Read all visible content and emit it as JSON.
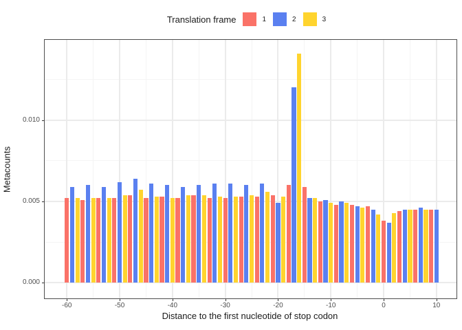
{
  "legend": {
    "title": "Translation frame",
    "items": [
      {
        "label": "1",
        "color": "#FA7268"
      },
      {
        "label": "2",
        "color": "#5A80F0"
      },
      {
        "label": "3",
        "color": "#FFD42E"
      }
    ]
  },
  "colors": {
    "frame1": "#FA7268",
    "frame2": "#5A80F0",
    "frame3": "#FFD42E",
    "grid_major": "#ebebeb",
    "grid_minor": "#f4f4f4",
    "panel_border": "#4d4d4d",
    "tick_text": "#4d4d4d"
  },
  "chart_data": {
    "type": "bar",
    "title": "",
    "xlabel": "Distance to the first nucleotide of stop codon",
    "ylabel": "Metacounts",
    "legend_title": "Translation frame",
    "legend_position": "top",
    "grid": true,
    "xlim": [
      -64.2,
      13.8
    ],
    "ylim": [
      -0.00096,
      0.01493
    ],
    "x_major_ticks": [
      -60,
      -50,
      -40,
      -30,
      -20,
      -10,
      0,
      10
    ],
    "x_minor_ticks": [
      -55,
      -45,
      -35,
      -25,
      -15,
      -5,
      5
    ],
    "y_major_ticks": [
      0.0,
      0.005,
      0.01
    ],
    "y_minor_ticks": [
      0.0025,
      0.0075,
      0.0125
    ],
    "y_tick_labels": [
      "0.000",
      "0.005",
      "0.010"
    ],
    "bars": [
      {
        "x": -60,
        "frame": 1,
        "v": 0.0052
      },
      {
        "x": -59,
        "frame": 2,
        "v": 0.0059
      },
      {
        "x": -58,
        "frame": 3,
        "v": 0.0052
      },
      {
        "x": -57,
        "frame": 1,
        "v": 0.0051
      },
      {
        "x": -56,
        "frame": 2,
        "v": 0.006
      },
      {
        "x": -55,
        "frame": 3,
        "v": 0.0052
      },
      {
        "x": -54,
        "frame": 1,
        "v": 0.0052
      },
      {
        "x": -53,
        "frame": 2,
        "v": 0.0059
      },
      {
        "x": -52,
        "frame": 3,
        "v": 0.0052
      },
      {
        "x": -51,
        "frame": 1,
        "v": 0.0052
      },
      {
        "x": -50,
        "frame": 2,
        "v": 0.0062
      },
      {
        "x": -49,
        "frame": 3,
        "v": 0.0054
      },
      {
        "x": -48,
        "frame": 1,
        "v": 0.0054
      },
      {
        "x": -47,
        "frame": 2,
        "v": 0.0064
      },
      {
        "x": -46,
        "frame": 3,
        "v": 0.0057
      },
      {
        "x": -45,
        "frame": 1,
        "v": 0.0052
      },
      {
        "x": -44,
        "frame": 2,
        "v": 0.0061
      },
      {
        "x": -43,
        "frame": 3,
        "v": 0.0053
      },
      {
        "x": -42,
        "frame": 1,
        "v": 0.0053
      },
      {
        "x": -41,
        "frame": 2,
        "v": 0.006
      },
      {
        "x": -40,
        "frame": 3,
        "v": 0.0052
      },
      {
        "x": -39,
        "frame": 1,
        "v": 0.0052
      },
      {
        "x": -38,
        "frame": 2,
        "v": 0.0059
      },
      {
        "x": -37,
        "frame": 3,
        "v": 0.0054
      },
      {
        "x": -36,
        "frame": 1,
        "v": 0.0054
      },
      {
        "x": -35,
        "frame": 2,
        "v": 0.006
      },
      {
        "x": -34,
        "frame": 3,
        "v": 0.0054
      },
      {
        "x": -33,
        "frame": 1,
        "v": 0.0052
      },
      {
        "x": -32,
        "frame": 2,
        "v": 0.0061
      },
      {
        "x": -31,
        "frame": 3,
        "v": 0.0053
      },
      {
        "x": -30,
        "frame": 1,
        "v": 0.0052
      },
      {
        "x": -29,
        "frame": 2,
        "v": 0.0061
      },
      {
        "x": -28,
        "frame": 3,
        "v": 0.0053
      },
      {
        "x": -27,
        "frame": 1,
        "v": 0.0053
      },
      {
        "x": -26,
        "frame": 2,
        "v": 0.006
      },
      {
        "x": -25,
        "frame": 3,
        "v": 0.0054
      },
      {
        "x": -24,
        "frame": 1,
        "v": 0.0053
      },
      {
        "x": -23,
        "frame": 2,
        "v": 0.0061
      },
      {
        "x": -22,
        "frame": 3,
        "v": 0.0056
      },
      {
        "x": -21,
        "frame": 1,
        "v": 0.0054
      },
      {
        "x": -20,
        "frame": 2,
        "v": 0.0049
      },
      {
        "x": -19,
        "frame": 3,
        "v": 0.0053
      },
      {
        "x": -18,
        "frame": 1,
        "v": 0.006
      },
      {
        "x": -17,
        "frame": 2,
        "v": 0.012
      },
      {
        "x": -16,
        "frame": 3,
        "v": 0.0141
      },
      {
        "x": -15,
        "frame": 1,
        "v": 0.0059
      },
      {
        "x": -14,
        "frame": 2,
        "v": 0.0052
      },
      {
        "x": -13,
        "frame": 3,
        "v": 0.0052
      },
      {
        "x": -12,
        "frame": 1,
        "v": 0.005
      },
      {
        "x": -11,
        "frame": 2,
        "v": 0.0051
      },
      {
        "x": -10,
        "frame": 3,
        "v": 0.0049
      },
      {
        "x": -9,
        "frame": 1,
        "v": 0.0048
      },
      {
        "x": -8,
        "frame": 2,
        "v": 0.005
      },
      {
        "x": -7,
        "frame": 3,
        "v": 0.0049
      },
      {
        "x": -6,
        "frame": 1,
        "v": 0.0048
      },
      {
        "x": -5,
        "frame": 2,
        "v": 0.0047
      },
      {
        "x": -4,
        "frame": 3,
        "v": 0.0046
      },
      {
        "x": -3,
        "frame": 1,
        "v": 0.0047
      },
      {
        "x": -2,
        "frame": 2,
        "v": 0.0045
      },
      {
        "x": -1,
        "frame": 3,
        "v": 0.0042
      },
      {
        "x": 0,
        "frame": 1,
        "v": 0.0038
      },
      {
        "x": 1,
        "frame": 2,
        "v": 0.0037
      },
      {
        "x": 2,
        "frame": 3,
        "v": 0.0043
      },
      {
        "x": 3,
        "frame": 1,
        "v": 0.0044
      },
      {
        "x": 4,
        "frame": 2,
        "v": 0.0045
      },
      {
        "x": 5,
        "frame": 3,
        "v": 0.0045
      },
      {
        "x": 6,
        "frame": 1,
        "v": 0.0045
      },
      {
        "x": 7,
        "frame": 2,
        "v": 0.0046
      },
      {
        "x": 8,
        "frame": 3,
        "v": 0.0045
      },
      {
        "x": 9,
        "frame": 1,
        "v": 0.0045
      },
      {
        "x": 10,
        "frame": 2,
        "v": 0.0045
      }
    ]
  }
}
